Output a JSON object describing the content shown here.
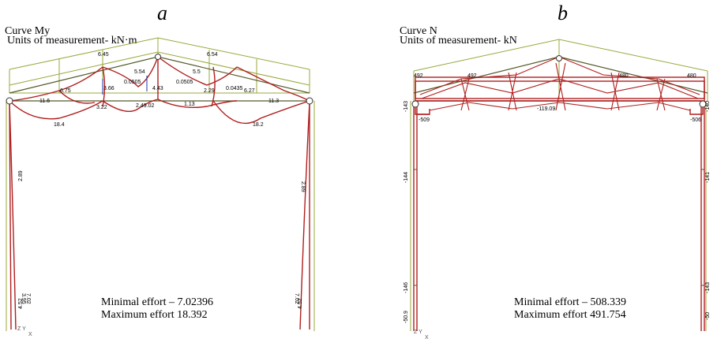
{
  "panel_a": {
    "letter": "a",
    "title": "Curve My",
    "units": "Units of measurement- kN·m",
    "min_label": "Minimal effort – 7.02396",
    "max_label": "Maximum effort   18.392",
    "values": [
      "6.45",
      "6.54",
      "5.54",
      "5.5",
      "0.0505",
      "0.0505",
      "4.43",
      "2.29",
      "0.0435",
      "6.27",
      "6.75",
      "3.66",
      "11.6",
      "11.3",
      "3.22",
      "1.13",
      "18.4",
      "18.2",
      "2.49.02",
      "2.89",
      "2.89",
      "3.95",
      "7.02",
      "7.02",
      "4.52",
      "4.52"
    ]
  },
  "panel_b": {
    "letter": "b",
    "title": "Curve N",
    "units": "Units of measurement- kN",
    "min_label": "Minimal effort –  508.339",
    "max_label": "Maximum effort    491.754",
    "values": [
      "492",
      "492",
      "480",
      "480",
      "-143",
      "-140",
      "-509",
      "-506",
      "-144",
      "-141",
      "-146",
      "-143",
      "-50.9",
      "-50",
      "-119.09"
    ]
  },
  "axis_glyph": {
    "z": "Z",
    "y": "Y",
    "x": "X"
  },
  "colors": {
    "frame": "#b01e1e",
    "envelope": "#9aa83a",
    "chord": "#555a2a"
  }
}
